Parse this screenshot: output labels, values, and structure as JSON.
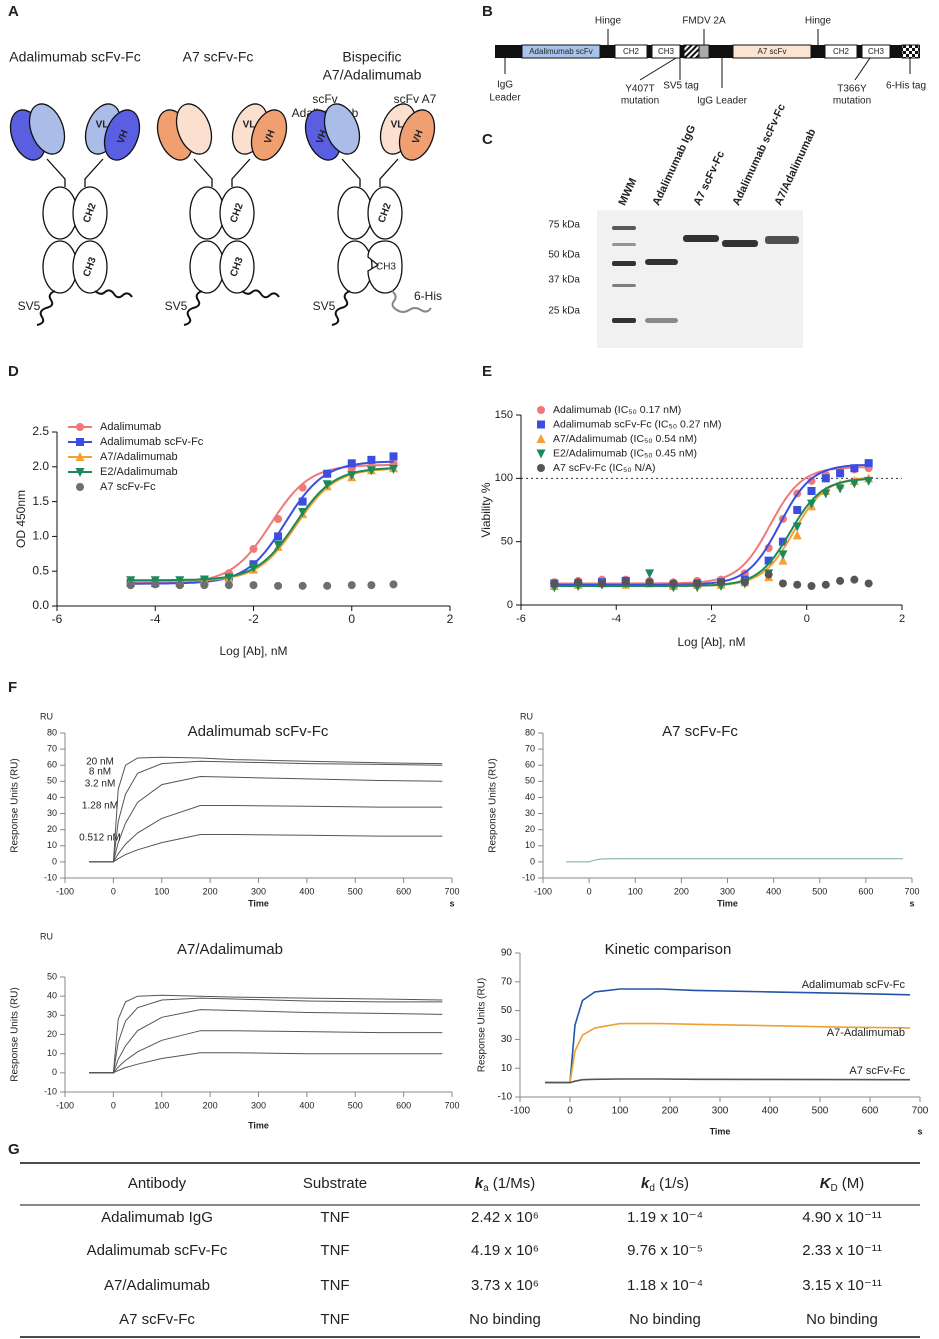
{
  "panel_labels": [
    "A",
    "B",
    "C",
    "D",
    "E",
    "F",
    "G"
  ],
  "panel_a": {
    "titles": [
      [
        "Adalimumab scFv-Fc"
      ],
      [
        "A7 scFv-Fc"
      ],
      [
        "Bispecific",
        "A7/Adalimumab"
      ]
    ],
    "arm_labels": [
      [
        "scFv",
        "Adalimumab"
      ],
      [
        "scFv A7"
      ]
    ],
    "domains": {
      "vl": "VL",
      "vh": "VH",
      "ch2": "CH2",
      "ch3": "CH3"
    },
    "tag": "SV5",
    "his": "6-His"
  },
  "panel_b": {
    "segments": {
      "adalimumab_scfv": "Adalimumab scFv",
      "ch2": "CH2",
      "ch3": "CH3",
      "a7_scfv": "A7 scFv"
    },
    "above": [
      "Hinge",
      "FMDV 2A",
      "Hinge"
    ],
    "below": [
      [
        "IgG",
        "Leader"
      ],
      [
        "Y407T",
        "mutation"
      ],
      [
        "SV5 tag"
      ],
      [
        "IgG Leader"
      ],
      [
        "T366Y",
        "mutation"
      ],
      [
        "6-His tag"
      ]
    ]
  },
  "panel_c": {
    "lanes": [
      "MWM",
      "Adalimumab IgG",
      "A7 scFv-Fc",
      "Adalimumab scFv-Fc",
      "A7/Adalimumab"
    ],
    "markers": [
      "75 kDa",
      "50 kDa",
      "37 kDa",
      "25 kDa"
    ]
  },
  "chart_data": [
    {
      "type": "dose_response",
      "x_label": "Log [Ab], nM",
      "y_label": "OD 450nm",
      "xlim": [
        -6,
        2
      ],
      "xticks": [
        -6,
        -4,
        -2,
        0,
        2
      ],
      "ylim": [
        0,
        2.5
      ],
      "yticks": [
        {
          "value": 0,
          "label": "0.0"
        },
        0.5,
        {
          "value": 1,
          "label": "1.0"
        },
        1.5,
        {
          "value": 2,
          "label": "2.0"
        },
        2.5
      ],
      "x": [
        -4.5,
        -4,
        -3.5,
        -3,
        -2.5,
        -2,
        -1.5,
        -1,
        -0.5,
        0,
        0.4,
        0.85
      ],
      "series": [
        {
          "name": "Adalimumab",
          "color": "#f07878",
          "marker": "circle",
          "values": [
            0.33,
            0.34,
            0.35,
            0.38,
            0.47,
            0.82,
            1.25,
            1.7,
            1.9,
            1.97,
            2.0,
            2.05
          ],
          "fit": {
            "bottom": 0.33,
            "top": 2.03,
            "log_ec50": -1.65,
            "hill": 1.1
          }
        },
        {
          "name": "Adalimumab scFv-Fc",
          "color": "#3a4fe0",
          "marker": "square",
          "values": [
            0.33,
            0.33,
            0.33,
            0.35,
            0.4,
            0.6,
            1.0,
            1.5,
            1.9,
            2.05,
            2.1,
            2.15
          ],
          "fit": {
            "bottom": 0.32,
            "top": 2.08,
            "log_ec50": -1.35,
            "hill": 1.1
          }
        },
        {
          "name": "A7/Adalimumab",
          "color": "#f5a030",
          "marker": "triangle",
          "values": [
            0.36,
            0.36,
            0.36,
            0.37,
            0.4,
            0.52,
            0.85,
            1.32,
            1.72,
            1.85,
            1.95,
            1.98
          ],
          "fit": {
            "bottom": 0.36,
            "top": 1.98,
            "log_ec50": -1.12,
            "hill": 1.1
          }
        },
        {
          "name": "E2/Adalimumab",
          "color": "#1a8a5a",
          "marker": "triangle-down",
          "values": [
            0.37,
            0.37,
            0.37,
            0.38,
            0.41,
            0.55,
            0.88,
            1.35,
            1.75,
            1.88,
            1.95,
            1.97
          ],
          "fit": {
            "bottom": 0.37,
            "top": 1.99,
            "log_ec50": -1.15,
            "hill": 1.1
          }
        },
        {
          "name": "A7 scFv-Fc",
          "color": "#6e6e6e",
          "marker": "circle",
          "values": [
            0.3,
            0.31,
            0.3,
            0.3,
            0.3,
            0.3,
            0.29,
            0.29,
            0.29,
            0.3,
            0.3,
            0.31
          ]
        }
      ]
    },
    {
      "type": "dose_response",
      "x_label": "Log [Ab], nM",
      "y_label": "Viability %",
      "xlim": [
        -6,
        2
      ],
      "xticks": [
        -6,
        -4,
        -2,
        0,
        2
      ],
      "ylim": [
        0,
        150
      ],
      "yticks": [
        0,
        50,
        100,
        150
      ],
      "reference_line": 100,
      "x": [
        -5.3,
        -4.8,
        -4.3,
        -3.8,
        -3.3,
        -2.8,
        -2.3,
        -1.8,
        -1.3,
        -0.8,
        -0.5,
        -0.2,
        0.1,
        0.4,
        0.7,
        1.0,
        1.3
      ],
      "series": [
        {
          "name": "Adalimumab (IC₅₀ 0.17 nM)",
          "color": "#f07878",
          "marker": "circle",
          "values": [
            18,
            19,
            20,
            20,
            19,
            18,
            19,
            20,
            25,
            45,
            68,
            88,
            98,
            103,
            105,
            107,
            108
          ],
          "fit": {
            "bottom": 17,
            "top": 109,
            "log_ec50": -0.77,
            "hill": 1.3
          }
        },
        {
          "name": "Adalimumab scFv-Fc (IC₅₀ 0.27 nM)",
          "color": "#3a4fe0",
          "marker": "square",
          "values": [
            17,
            17,
            18,
            19,
            17,
            16,
            17,
            18,
            20,
            35,
            50,
            75,
            90,
            100,
            104,
            108,
            112
          ],
          "fit": {
            "bottom": 16,
            "top": 111,
            "log_ec50": -0.57,
            "hill": 1.3
          }
        },
        {
          "name": "A7/Adalimumab (IC₅₀ 0.54 nM)",
          "color": "#f5a030",
          "marker": "triangle",
          "values": [
            15,
            16,
            17,
            16,
            17,
            15,
            16,
            16,
            18,
            22,
            35,
            55,
            78,
            90,
            95,
            98,
            100
          ],
          "fit": {
            "bottom": 15,
            "top": 101,
            "log_ec50": -0.27,
            "hill": 1.3
          }
        },
        {
          "name": "E2/Adalimumab (IC₅₀ 0.45 nM)",
          "color": "#1a8a5a",
          "marker": "triangle-down",
          "values": [
            14,
            15,
            16,
            17,
            25,
            14,
            14,
            15,
            17,
            25,
            40,
            62,
            80,
            88,
            92,
            96,
            98
          ],
          "fit": {
            "bottom": 15,
            "top": 100,
            "log_ec50": -0.35,
            "hill": 1.3
          }
        },
        {
          "name": "A7 scFv-Fc (IC₅₀ N/A)",
          "color": "#555555",
          "marker": "circle",
          "values": [
            17,
            18,
            17,
            18,
            18,
            17,
            17,
            18,
            18,
            24,
            17,
            16,
            15,
            16,
            19,
            20,
            17
          ]
        }
      ]
    },
    {
      "type": "line",
      "title": "Adalimumab scFv-Fc",
      "x_label": "Time",
      "x_unit": "s",
      "y_label": "Response Units (RU)",
      "y_unit": "RU",
      "line_color": "#555555",
      "xlim": [
        -100,
        700
      ],
      "xticks": [
        -100,
        0,
        100,
        200,
        300,
        400,
        500,
        600,
        700
      ],
      "ylim": [
        -10,
        80
      ],
      "yticks": [
        -10,
        0,
        10,
        20,
        30,
        40,
        50,
        60,
        70,
        80
      ],
      "x": [
        -50,
        0,
        10,
        25,
        50,
        100,
        180,
        250,
        400,
        550,
        680
      ],
      "series": [
        {
          "name": "20 nM",
          "color": "#2bb5b5",
          "values": [
            0,
            0,
            45,
            60,
            64.5,
            65,
            64.5,
            63.5,
            62.5,
            61.5,
            61
          ]
        },
        {
          "name": "8 nM",
          "color": "#e060e0",
          "values": [
            0,
            0,
            25,
            42,
            55,
            61,
            62.5,
            62,
            61,
            60.5,
            60
          ]
        },
        {
          "name": "3.2 nM",
          "color": "#2050d0",
          "values": [
            0,
            0,
            12,
            24,
            37,
            48,
            53,
            52.5,
            51.5,
            50.5,
            50
          ]
        },
        {
          "name": "1.28 nM",
          "color": "#5a9a20",
          "values": [
            0,
            0,
            5,
            11,
            18,
            27,
            35,
            35,
            34.5,
            34,
            34
          ]
        },
        {
          "name": "0.512 nM",
          "color": "#e06060",
          "values": [
            0,
            0,
            2,
            4.5,
            7.5,
            12,
            17,
            17,
            16.5,
            16,
            16
          ]
        }
      ]
    },
    {
      "type": "line",
      "title": "A7 scFv-Fc",
      "x_label": "Time",
      "x_unit": "s",
      "y_label": "Response Units (RU)",
      "y_unit": "RU",
      "line_color": "#7aa8a8",
      "xlim": [
        -100,
        700
      ],
      "xticks": [
        -100,
        0,
        100,
        200,
        300,
        400,
        500,
        600,
        700
      ],
      "ylim": [
        -10,
        80
      ],
      "yticks": [
        -10,
        0,
        10,
        20,
        30,
        40,
        50,
        60,
        70,
        80
      ],
      "x": [
        -50,
        0,
        10,
        25,
        50,
        100,
        180,
        250,
        400,
        550,
        680
      ],
      "series": [
        {
          "values": [
            0,
            0,
            1,
            1.8,
            2,
            2,
            2,
            2,
            2,
            2,
            2
          ]
        }
      ]
    },
    {
      "type": "line",
      "title": "A7/Adalimumab",
      "x_label": "Time",
      "y_label": "Response Units (RU)",
      "y_unit": "RU",
      "line_color": "#555555",
      "xlim": [
        -100,
        700
      ],
      "xticks": [
        -100,
        0,
        100,
        200,
        300,
        400,
        500,
        600,
        700
      ],
      "ylim": [
        -10,
        50
      ],
      "yticks": [
        -10,
        0,
        10,
        20,
        30,
        40,
        50
      ],
      "x": [
        -50,
        0,
        10,
        25,
        50,
        100,
        180,
        250,
        400,
        550,
        680
      ],
      "series": [
        {
          "values": [
            0,
            0,
            28,
            37,
            40,
            40.5,
            40,
            39.5,
            39,
            38.5,
            38
          ]
        },
        {
          "values": [
            0,
            0,
            16,
            27,
            34,
            38,
            39,
            38.5,
            37.5,
            37,
            37
          ]
        },
        {
          "values": [
            0,
            0,
            7,
            14,
            22,
            29,
            33,
            32.5,
            31.5,
            31,
            30.5
          ]
        },
        {
          "values": [
            0,
            0,
            3,
            6.5,
            11,
            17,
            22,
            22,
            21.5,
            21,
            21
          ]
        },
        {
          "values": [
            0,
            0,
            1.2,
            2.8,
            4.5,
            7.5,
            10.5,
            10.5,
            10,
            10,
            10
          ]
        }
      ]
    },
    {
      "type": "line",
      "title": "Kinetic comparison",
      "x_label": "Time",
      "x_unit": "s",
      "y_label": "Response Units (RU)",
      "xlim": [
        -100,
        700
      ],
      "xticks": [
        -100,
        0,
        100,
        200,
        300,
        400,
        500,
        600,
        700
      ],
      "ylim": [
        -10,
        90
      ],
      "yticks": [
        -10,
        10,
        30,
        50,
        70,
        90
      ],
      "x": [
        -50,
        0,
        10,
        25,
        50,
        100,
        180,
        250,
        400,
        550,
        680
      ],
      "series": [
        {
          "name": "Adalimumab scFv-Fc",
          "color": "#2255aa",
          "values": [
            0,
            0,
            40,
            57,
            63,
            65,
            65,
            64,
            63,
            62,
            61
          ]
        },
        {
          "name": "A7-Adalimumab",
          "color": "#f0a030",
          "values": [
            0,
            0,
            22,
            33,
            38,
            41,
            41,
            40.5,
            39.5,
            38.5,
            38
          ]
        },
        {
          "name": "A7 scFv-Fc",
          "color": "#555555",
          "values": [
            0,
            0,
            1,
            2,
            2.3,
            2.5,
            2.5,
            2.3,
            2.2,
            2.1,
            2
          ]
        }
      ]
    }
  ],
  "table": {
    "header": [
      "Antibody",
      "Substrate",
      {
        "symbol": "k",
        "sub": "a",
        "unit": "(1/Ms)"
      },
      {
        "symbol": "k",
        "sub": "d",
        "unit": "(1/s)"
      },
      {
        "symbol": "K",
        "sub": "D",
        "unit": "(M)"
      }
    ],
    "rows": [
      [
        "Adalimumab IgG",
        "TNF",
        "2.42 x 10⁶",
        "1.19 x 10⁻⁴",
        "4.90 x 10⁻¹¹"
      ],
      [
        "Adalimumab scFv-Fc",
        "TNF",
        "4.19 x 10⁶",
        "9.76 x 10⁻⁵",
        "2.33 x 10⁻¹¹"
      ],
      [
        "A7/Adalimumab",
        "TNF",
        "3.73 x 10⁶",
        "1.18 x 10⁻⁴",
        "3.15 x 10⁻¹¹"
      ],
      [
        "A7 scFv-Fc",
        "TNF",
        "No binding",
        "No binding",
        "No binding"
      ]
    ]
  }
}
